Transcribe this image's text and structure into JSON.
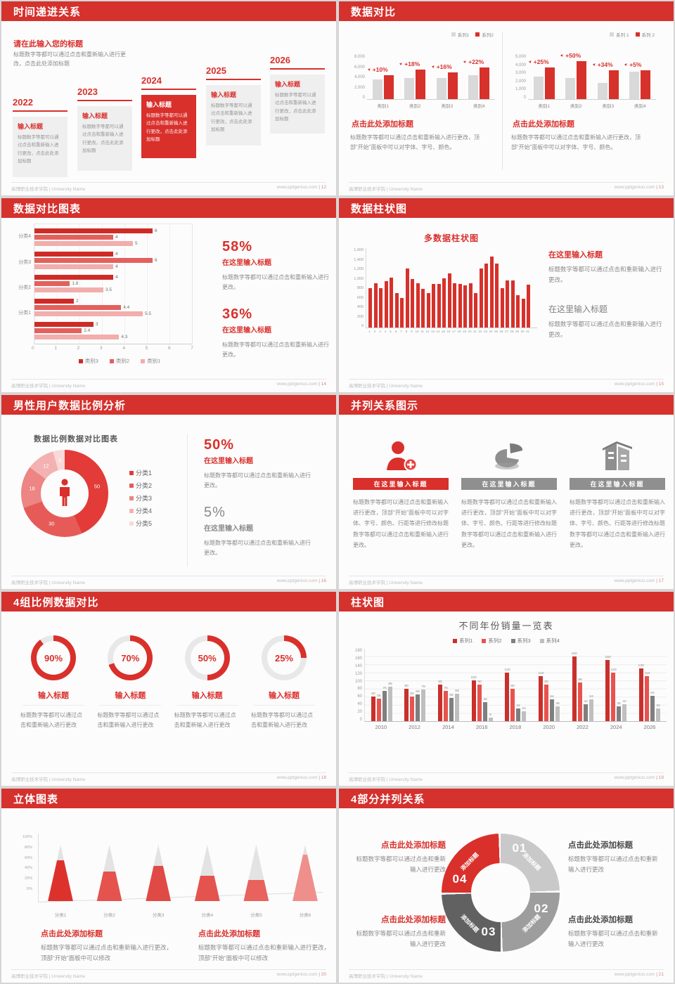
{
  "footer": {
    "left": "高博职业技术学院 | University Name",
    "site": "www.pptgenius.com"
  },
  "slides": [
    {
      "page": "12",
      "title": "时间递进关系",
      "subtitle": "请在此输入您的标题",
      "intro": "标题数字等都可以通过点击和重新输入进行更改，点击此处添加标题",
      "item_label": "输入标题",
      "item_body": "标题数字等都可以通过点击和重新输入进行更改，点击此处添加标题",
      "years": [
        "2022",
        "2023",
        "2024",
        "2025",
        "2026"
      ],
      "highlight_year": "2024"
    },
    {
      "page": "13",
      "title": "数据对比",
      "heading": "点击此处添加标题",
      "body": "标题数字等都可以通过点击和重新输入进行更改，顶部“开始”面板中可以对字体、字号、颜色。",
      "chart_data": [
        {
          "type": "bar",
          "categories": [
            "类别1",
            "类别2",
            "类别3",
            "类别4"
          ],
          "series": [
            {
              "name": "系列1",
              "color": "#d9d9d9",
              "values": [
                3500,
                3800,
                3700,
                4300
              ]
            },
            {
              "name": "系列2",
              "color": "#d7312b",
              "values": [
                4200,
                5300,
                4800,
                5600
              ]
            }
          ],
          "annotations": [
            "+10%",
            "+18%",
            "+16%",
            "+22%"
          ],
          "ylim": [
            0,
            8000
          ],
          "yticks": [
            "8,000",
            "6,000",
            "4,000",
            "2,000",
            "0"
          ],
          "legend_position": "top-right",
          "grid": false
        },
        {
          "type": "bar",
          "categories": [
            "类别1",
            "类别2",
            "类别3",
            "类别4"
          ],
          "series": [
            {
              "name": "系列 1",
              "color": "#d9d9d9",
              "values": [
                2500,
                2350,
                1800,
                3050
              ]
            },
            {
              "name": "系列 2",
              "color": "#d7312b",
              "values": [
                3500,
                4200,
                3200,
                3200
              ]
            }
          ],
          "annotations": [
            "+25%",
            "+50%",
            "+34%",
            "+5%"
          ],
          "ylim": [
            0,
            5000
          ],
          "yticks": [
            "5,000",
            "4,000",
            "3,000",
            "2,000",
            "1,000",
            "0"
          ],
          "legend_position": "top-right",
          "grid": false
        }
      ]
    },
    {
      "page": "14",
      "title": "数据对比图表",
      "stats": [
        {
          "value": "58%",
          "label": "在这里输入标题",
          "body": "标题数字等都可以通过点击和重新输入进行更改。"
        },
        {
          "value": "36%",
          "label": "在这里输入标题",
          "body": "标题数字等都可以通过点击和重新输入进行更改。"
        }
      ],
      "chart_data": {
        "type": "bar",
        "orientation": "horizontal",
        "group_labels": [
          "分类4",
          "分类3",
          "分类2",
          "分类1",
          ""
        ],
        "series_names": [
          "类别3",
          "类别2",
          "类别1"
        ],
        "series_colors": [
          "#cf2b26",
          "#e2615d",
          "#f1aeac"
        ],
        "groups": [
          [
            6,
            4,
            5
          ],
          [
            4,
            6,
            4
          ],
          [
            4,
            1.8,
            3.5
          ],
          [
            2,
            4.4,
            5.5
          ],
          [
            3,
            2.4,
            4.3
          ]
        ],
        "xlim": [
          0,
          7
        ],
        "xticks": [
          "0",
          "1",
          "2",
          "3",
          "4",
          "5",
          "6",
          "7"
        ],
        "legend_position": "bottom",
        "grid": true
      }
    },
    {
      "page": "15",
      "title": "数据柱状图",
      "blocks": [
        {
          "heading": "在这里输入标题",
          "body": "标题数字等都可以通过点击和重新输入进行更改。",
          "accent": true
        },
        {
          "heading": "在这里输入标题",
          "body": "标题数字等都可以通过点击和重新输入进行更改。",
          "accent": false
        }
      ],
      "chart_data": {
        "type": "bar",
        "title": "多数据柱状图",
        "x": [
          1,
          2,
          3,
          4,
          5,
          6,
          7,
          8,
          9,
          10,
          11,
          12,
          13,
          14,
          15,
          16,
          17,
          18,
          19,
          20,
          21,
          22,
          23,
          24,
          25,
          26,
          27,
          28,
          29,
          30,
          31
        ],
        "values": [
          800,
          900,
          800,
          950,
          1020,
          700,
          600,
          1200,
          980,
          900,
          780,
          700,
          880,
          880,
          1000,
          1100,
          900,
          880,
          860,
          900,
          700,
          1200,
          1300,
          1450,
          1300,
          800,
          960,
          960,
          660,
          590,
          870
        ],
        "ylim": [
          0,
          1600
        ],
        "yticks": [
          "1,600",
          "1,400",
          "1,200",
          "1,000",
          "800",
          "600",
          "400",
          "200",
          "0"
        ],
        "bar_color": "#d7312b",
        "grid": false
      }
    },
    {
      "page": "16",
      "title": "男性用户数据比例分析",
      "chart_title": "数据比例数据对比图表",
      "stats": [
        {
          "value": "50%",
          "label": "在这里输入标题",
          "body": "标题数字等都可以通过点击和重新输入进行更改。",
          "accent": true
        },
        {
          "value": "5%",
          "label": "在这里输入标题",
          "body": "标题数字等都可以通过点击和重新输入进行更改。",
          "accent": false
        }
      ],
      "chart_data": {
        "type": "pie",
        "donut": true,
        "labels": [
          "分类1",
          "分类2",
          "分类3",
          "分类4",
          "分类5"
        ],
        "values": [
          50,
          30,
          18,
          12,
          5
        ],
        "colors": [
          "#e23b38",
          "#e65b58",
          "#ec8583",
          "#f3b2b1",
          "#f9d9d8"
        ],
        "center_icon": "male-person-icon",
        "legend_position": "right"
      }
    },
    {
      "page": "17",
      "title": "并列关系图示",
      "columns": [
        {
          "icon": "nurse-add-icon",
          "banner": "在这里输入标题",
          "accent": true,
          "body": "标题数字等都可以通过点击和重新输入进行更改，顶部“开始”面板中可以对字体、字号、颜色、行距等进行修改标题数字等都可以通过点击和重新输入进行更改。"
        },
        {
          "icon": "pie-chart-icon",
          "banner": "在这里输入标题",
          "accent": false,
          "body": "标题数字等都可以通过点击和重新输入进行更改，顶部“开始”面板中可以对字体、字号、颜色、行距等进行修改标题数字等都可以通过点击和重新输入进行更改。"
        },
        {
          "icon": "building-icon",
          "banner": "在这里输入标题",
          "accent": false,
          "body": "标题数字等都可以通过点击和重新输入进行更改，顶部“开始”面板中可以对字体、字号、颜色、行距等进行修改标题数字等都可以通过点击和重新输入进行更改。"
        }
      ]
    },
    {
      "page": "18",
      "title": "4组比例数据对比",
      "rings": [
        {
          "pct": 90,
          "display": "90%",
          "label": "输入标题",
          "body": "标题数字等都可以通过点击和重新输入进行更改"
        },
        {
          "pct": 70,
          "display": "70%",
          "label": "输入标题",
          "body": "标题数字等都可以通过点击和重新输入进行更改"
        },
        {
          "pct": 50,
          "display": "50%",
          "label": "输入标题",
          "body": "标题数字等都可以通过点击和重新输入进行更改"
        },
        {
          "pct": 25,
          "display": "25%",
          "label": "输入标题",
          "body": "标题数字等都可以通过点击和重新输入进行更改"
        }
      ]
    },
    {
      "page": "19",
      "title": "柱状图",
      "chart_data": {
        "type": "bar",
        "title": "不同年份销量一览表",
        "categories": [
          "2010",
          "2012",
          "2014",
          "2016",
          "2018",
          "2020",
          "2022",
          "2024",
          "2026"
        ],
        "series": [
          {
            "name": "系列1",
            "color": "#c9302c",
            "values": [
              60,
              80,
              90,
              100,
              120,
              110,
              160,
              150,
              130
            ]
          },
          {
            "name": "系列2",
            "color": "#e8534f",
            "values": [
              55,
              60,
              75,
              90,
              80,
              90,
              96,
              120,
              110
            ]
          },
          {
            "name": "系列3",
            "color": "#7f7f7f",
            "values": [
              75,
              65,
              58,
              46,
              32,
              54,
              42,
              36,
              62
            ]
          },
          {
            "name": "系列4",
            "color": "#bfbfbf",
            "values": [
              85,
              78,
              68,
              8,
              24,
              36,
              53,
              42,
              32
            ]
          }
        ],
        "ylim": [
          0,
          180
        ],
        "yticks": [
          "180",
          "160",
          "140",
          "120",
          "100",
          "80",
          "60",
          "40",
          "20",
          "0"
        ],
        "legend_position": "top",
        "grid": true
      }
    },
    {
      "page": "20",
      "title": "立体图表",
      "blocks": [
        {
          "heading": "点击此处添加标题",
          "body": "标题数字等都可以通过点击和重新输入进行更改，顶部“开始”面板中可以修改"
        },
        {
          "heading": "点击此处添加标题",
          "body": "标题数字等都可以通过点击和重新输入进行更改，顶部“开始”面板中可以修改"
        }
      ],
      "chart_data": {
        "type": "bar",
        "style": "cone",
        "categories": [
          "分类1",
          "分类2",
          "分类3",
          "分类4",
          "分类5",
          "分类6"
        ],
        "values_pct": [
          72,
          52,
          62,
          45,
          38,
          82
        ],
        "colors": [
          "#dd322c",
          "#e4534e",
          "#e04a45",
          "#e4534e",
          "#e8625e",
          "#ef8f8c"
        ],
        "yticks": [
          "100%",
          "80%",
          "60%",
          "40%",
          "20%",
          "0%"
        ],
        "ylim": [
          0,
          100
        ]
      }
    },
    {
      "page": "21",
      "title": "4部分并列关系",
      "segments": [
        {
          "num": "01",
          "label": "添加标题",
          "color": "#c9c9c9"
        },
        {
          "num": "02",
          "label": "添加标题",
          "color": "#9d9d9d"
        },
        {
          "num": "03",
          "label": "添加标题",
          "color": "#616161"
        },
        {
          "num": "04",
          "label": "添加标题",
          "color": "#d9302c"
        }
      ],
      "blocks": [
        {
          "heading": "点击此处添加标题",
          "body": "标题数字等都可以通过点击和重新输入进行更改",
          "accent": true
        },
        {
          "heading": "点击此处添加标题",
          "body": "标题数字等都可以通过点击和重新输入进行更改",
          "accent": false
        },
        {
          "heading": "点击此处添加标题",
          "body": "标题数字等都可以通过点击和重新输入进行更改",
          "accent": true
        },
        {
          "heading": "点击此处添加标题",
          "body": "标题数字等都可以通过点击和重新输入进行更改",
          "accent": false
        }
      ]
    }
  ]
}
